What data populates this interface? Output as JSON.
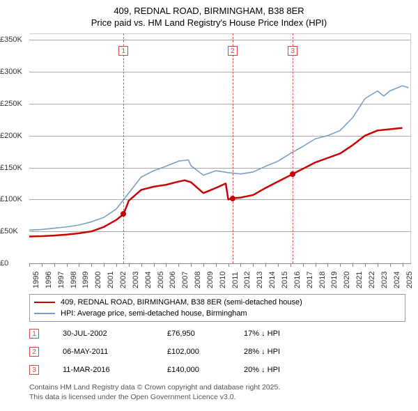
{
  "title_line1": "409, REDNAL ROAD, BIRMINGHAM, B38 8ER",
  "title_line2": "Price paid vs. HM Land Registry's House Price Index (HPI)",
  "chart": {
    "type": "line",
    "background_color": "#ffffff",
    "grid_color": "#aaaaaa",
    "x_years": [
      1995,
      1996,
      1997,
      1998,
      1999,
      2000,
      2001,
      2002,
      2003,
      2004,
      2005,
      2006,
      2007,
      2008,
      2009,
      2010,
      2011,
      2012,
      2013,
      2014,
      2015,
      2016,
      2017,
      2018,
      2019,
      2020,
      2021,
      2022,
      2023,
      2024,
      2025
    ],
    "xlim": [
      1995,
      2025.7
    ],
    "ylim": [
      0,
      360000
    ],
    "y_ticks": [
      0,
      50000,
      100000,
      150000,
      200000,
      250000,
      300000,
      350000
    ],
    "y_tick_labels": [
      "£0",
      "£50K",
      "£100K",
      "£150K",
      "£200K",
      "£250K",
      "£300K",
      "£350K"
    ],
    "series": [
      {
        "name": "price_paid",
        "color": "#cc0000",
        "line_width": 2.5,
        "label": "409, REDNAL ROAD, BIRMINGHAM, B38 8ER (semi-detached house)",
        "data": [
          [
            1995,
            42000
          ],
          [
            1996,
            42500
          ],
          [
            1997,
            43500
          ],
          [
            1998,
            45000
          ],
          [
            1999,
            47000
          ],
          [
            2000,
            50000
          ],
          [
            2001,
            57000
          ],
          [
            2002,
            68000
          ],
          [
            2002.58,
            76950
          ],
          [
            2003,
            98000
          ],
          [
            2004,
            115000
          ],
          [
            2005,
            120000
          ],
          [
            2006,
            123000
          ],
          [
            2007,
            128000
          ],
          [
            2007.5,
            130000
          ],
          [
            2008,
            127000
          ],
          [
            2009,
            110000
          ],
          [
            2010,
            118000
          ],
          [
            2010.8,
            125000
          ],
          [
            2011,
            100000
          ],
          [
            2011.35,
            102000
          ],
          [
            2012,
            103000
          ],
          [
            2013,
            107000
          ],
          [
            2014,
            118000
          ],
          [
            2015,
            128000
          ],
          [
            2016,
            138000
          ],
          [
            2016.19,
            140000
          ],
          [
            2017,
            148000
          ],
          [
            2018,
            158000
          ],
          [
            2019,
            165000
          ],
          [
            2020,
            172000
          ],
          [
            2021,
            185000
          ],
          [
            2022,
            200000
          ],
          [
            2023,
            208000
          ],
          [
            2024,
            210000
          ],
          [
            2025,
            212000
          ]
        ],
        "event_points": [
          {
            "x": 2002.58,
            "y": 76950
          },
          {
            "x": 2011.35,
            "y": 102000
          },
          {
            "x": 2016.19,
            "y": 140000
          }
        ]
      },
      {
        "name": "hpi",
        "color": "#7a9ec9",
        "line_width": 1.6,
        "label": "HPI: Average price, semi-detached house, Birmingham",
        "data": [
          [
            1995,
            52000
          ],
          [
            1996,
            53000
          ],
          [
            1997,
            55000
          ],
          [
            1998,
            57000
          ],
          [
            1999,
            60000
          ],
          [
            2000,
            65000
          ],
          [
            2001,
            72000
          ],
          [
            2002,
            85000
          ],
          [
            2003,
            110000
          ],
          [
            2004,
            135000
          ],
          [
            2005,
            145000
          ],
          [
            2006,
            152000
          ],
          [
            2007,
            160000
          ],
          [
            2007.8,
            162000
          ],
          [
            2008,
            153000
          ],
          [
            2009,
            138000
          ],
          [
            2010,
            145000
          ],
          [
            2011,
            142000
          ],
          [
            2012,
            140000
          ],
          [
            2013,
            143000
          ],
          [
            2014,
            152000
          ],
          [
            2015,
            160000
          ],
          [
            2016,
            172000
          ],
          [
            2017,
            183000
          ],
          [
            2018,
            195000
          ],
          [
            2019,
            200000
          ],
          [
            2020,
            208000
          ],
          [
            2021,
            228000
          ],
          [
            2022,
            258000
          ],
          [
            2023,
            270000
          ],
          [
            2023.5,
            262000
          ],
          [
            2024,
            270000
          ],
          [
            2025,
            278000
          ],
          [
            2025.5,
            275000
          ]
        ]
      }
    ],
    "event_lines": [
      {
        "x": 2002.58,
        "label": "1"
      },
      {
        "x": 2011.35,
        "label": "2"
      },
      {
        "x": 2016.19,
        "label": "3"
      }
    ],
    "event_line_color": "#dd5555"
  },
  "legend": {
    "items": [
      {
        "color": "#cc0000",
        "width": 2.5,
        "label": "409, REDNAL ROAD, BIRMINGHAM, B38 8ER (semi-detached house)"
      },
      {
        "color": "#7a9ec9",
        "width": 1.6,
        "label": "HPI: Average price, semi-detached house, Birmingham"
      }
    ]
  },
  "events_table": [
    {
      "n": "1",
      "date": "30-JUL-2002",
      "price": "£76,950",
      "diff": "17% ↓ HPI"
    },
    {
      "n": "2",
      "date": "06-MAY-2011",
      "price": "£102,000",
      "diff": "28% ↓ HPI"
    },
    {
      "n": "3",
      "date": "11-MAR-2016",
      "price": "£140,000",
      "diff": "20% ↓ HPI"
    }
  ],
  "attribution_line1": "Contains HM Land Registry data © Crown copyright and database right 2025.",
  "attribution_line2": "This data is licensed under the Open Government Licence v3.0."
}
